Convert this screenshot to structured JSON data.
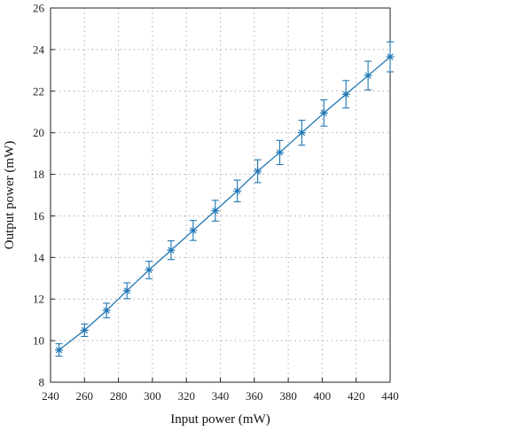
{
  "chart_data": {
    "type": "line",
    "xlabel": "Input power (mW)",
    "ylabel": "Output power (mW)",
    "xlim": [
      240,
      440
    ],
    "ylim": [
      8,
      26
    ],
    "xticks": [
      240,
      260,
      280,
      300,
      320,
      340,
      360,
      380,
      400,
      420,
      440
    ],
    "yticks": [
      8,
      10,
      12,
      14,
      16,
      18,
      20,
      22,
      24,
      26
    ],
    "grid": true,
    "color": "#1f77b4",
    "marker": "asterisk",
    "series": [
      {
        "x": [
          245,
          260,
          273,
          285,
          298,
          311,
          324,
          337,
          350,
          362,
          375,
          388,
          401,
          414,
          427,
          440
        ],
        "y": [
          9.55,
          10.5,
          11.45,
          12.4,
          13.4,
          14.35,
          15.3,
          16.25,
          17.2,
          18.15,
          19.05,
          20.0,
          20.95,
          21.85,
          22.75,
          23.65
        ],
        "err": [
          0.3,
          0.3,
          0.35,
          0.38,
          0.42,
          0.45,
          0.48,
          0.5,
          0.52,
          0.55,
          0.58,
          0.6,
          0.63,
          0.66,
          0.69,
          0.72
        ]
      }
    ]
  }
}
